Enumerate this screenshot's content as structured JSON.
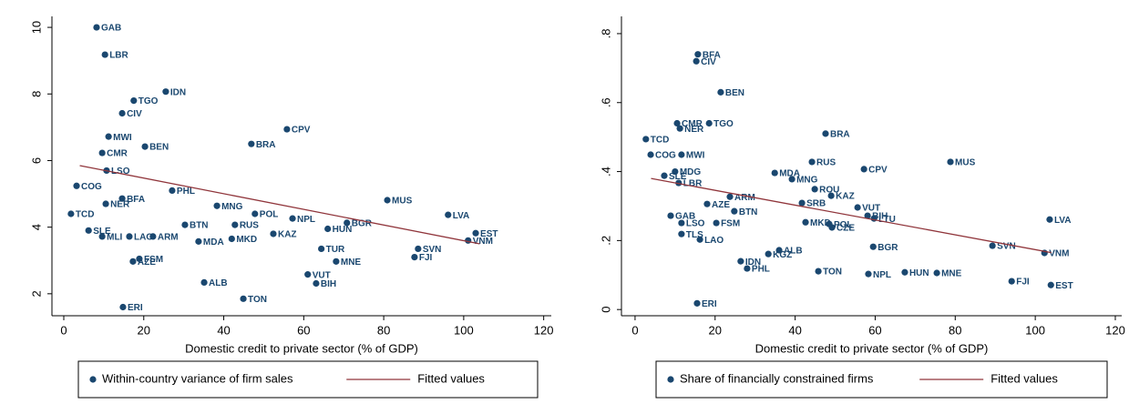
{
  "chart_data": [
    {
      "type": "scatter",
      "xlabel": "Domestic credit to private sector (% of GDP)",
      "xlim": [
        -2.96,
        121.9
      ],
      "ylim": [
        1.34,
        10.33
      ],
      "xticks": [
        0,
        20,
        40,
        60,
        80,
        100,
        120
      ],
      "yticks": [
        2,
        4,
        6,
        8,
        10
      ],
      "series": [
        {
          "name": "Within-country variance of firm sales",
          "color": "#1a476f",
          "labels": [
            "GAB",
            "LBR",
            "IDN",
            "TGO",
            "CIV",
            "CPV",
            "MWI",
            "BRA",
            "BEN",
            "CMR",
            "LSO",
            "COG",
            "PHL",
            "BFA",
            "NER",
            "MUS",
            "MNG",
            "TCD",
            "POL",
            "LVA",
            "NPL",
            "BGR",
            "BTN",
            "RUS",
            "HUN",
            "SLE",
            "EST",
            "MLI",
            "LAO",
            "ARM",
            "KAZ",
            "VNM",
            "MDA",
            "MKD",
            "TUR",
            "SVN",
            "FJI",
            "MNE",
            "FSM",
            "AZE",
            "VUT",
            "BIH",
            "ALB",
            "TON",
            "ERI"
          ],
          "x": [
            8.2,
            10.3,
            25.5,
            17.5,
            14.6,
            55.8,
            11.2,
            46.9,
            20.3,
            9.6,
            10.7,
            3.2,
            27.1,
            14.6,
            10.5,
            80.9,
            38.3,
            1.8,
            47.8,
            96.1,
            57.2,
            70.8,
            30.3,
            42.8,
            66,
            6.2,
            103,
            9.6,
            16.4,
            22.3,
            52.4,
            101.1,
            33.7,
            42,
            64.4,
            88.6,
            87.7,
            68.1,
            18.9,
            17.3,
            61,
            63.1,
            35.1,
            44.9,
            14.8
          ],
          "values": [
            10,
            9.18,
            8.07,
            7.8,
            7.42,
            6.94,
            6.72,
            6.5,
            6.42,
            6.23,
            5.7,
            5.24,
            5.1,
            4.86,
            4.7,
            4.81,
            4.64,
            4.4,
            4.4,
            4.37,
            4.26,
            4.13,
            4.07,
            4.07,
            3.95,
            3.9,
            3.82,
            3.72,
            3.72,
            3.72,
            3.8,
            3.6,
            3.57,
            3.65,
            3.35,
            3.35,
            3.1,
            2.97,
            3.05,
            2.97,
            2.58,
            2.31,
            2.34,
            1.85,
            1.6
          ]
        },
        {
          "name": "Fitted values",
          "color": "#90353b",
          "type": "line",
          "x": [
            4,
            104
          ],
          "values": [
            5.85,
            3.5
          ]
        }
      ]
    },
    {
      "type": "scatter",
      "xlabel": "Domestic credit to private sector (% of GDP)",
      "xlim": [
        -3.4,
        121.6
      ],
      "ylim": [
        -0.018,
        0.85
      ],
      "xticks": [
        0,
        20,
        40,
        60,
        80,
        100,
        120
      ],
      "yticks": [
        0,
        {
          "value": 0.2,
          "label": ".2"
        },
        {
          "value": 0.4,
          "label": ".4"
        },
        {
          "value": 0.6,
          "label": ".6"
        },
        {
          "value": 0.8,
          "label": ".8"
        }
      ],
      "series": [
        {
          "name": "Share of financially constrained firms",
          "color": "#1a476f",
          "labels": [
            "BFA",
            "CIV",
            "BEN",
            "CMR",
            "TGO",
            "NER",
            "BRA",
            "TCD",
            "COG",
            "MWI",
            "RUS",
            "CPV",
            "MUS",
            "MDG",
            "MDA",
            "SLE",
            "MNG",
            "LBR",
            "ROU",
            "KAZ",
            "ARM",
            "SRB",
            "AZE",
            "VUT",
            "BTN",
            "GAB",
            "BIH",
            "LTU",
            "LVA",
            "LSO",
            "FSM",
            "MKD",
            "POL",
            "CZE",
            "TLS",
            "LAO",
            "BGR",
            "SVN",
            "VNM",
            "ALB",
            "KGZ",
            "IDN",
            "PHL",
            "TON",
            "NPL",
            "HUN",
            "MNE",
            "FJI",
            "EST",
            "ERI"
          ],
          "x": [
            15.7,
            15.3,
            21.4,
            10.5,
            18.5,
            11.2,
            47.6,
            2.7,
            3.9,
            11.6,
            44.2,
            57.2,
            78.8,
            10,
            34.9,
            7.3,
            39.2,
            10.9,
            44.9,
            49,
            23.7,
            41.7,
            18,
            55.6,
            24.8,
            8.9,
            58.1,
            59.7,
            103.6,
            11.6,
            20.3,
            42.6,
            48.5,
            49.2,
            11.6,
            16.2,
            59.5,
            89.3,
            102.3,
            36,
            33.3,
            26.4,
            28,
            45.8,
            58.3,
            67.4,
            75.4,
            94.1,
            103.9,
            15.5
          ],
          "values": [
            0.74,
            0.72,
            0.63,
            0.54,
            0.54,
            0.525,
            0.51,
            0.494,
            0.449,
            0.449,
            0.428,
            0.407,
            0.428,
            0.4,
            0.396,
            0.388,
            0.378,
            0.367,
            0.349,
            0.33,
            0.327,
            0.309,
            0.306,
            0.296,
            0.285,
            0.272,
            0.272,
            0.264,
            0.261,
            0.251,
            0.251,
            0.253,
            0.248,
            0.238,
            0.219,
            0.203,
            0.182,
            0.185,
            0.164,
            0.172,
            0.161,
            0.14,
            0.119,
            0.111,
            0.103,
            0.108,
            0.106,
            0.082,
            0.071,
            0.018
          ]
        },
        {
          "name": "Fitted values",
          "color": "#90353b",
          "type": "line",
          "x": [
            4,
            104
          ],
          "values": [
            0.38,
            0.165
          ]
        }
      ]
    }
  ]
}
